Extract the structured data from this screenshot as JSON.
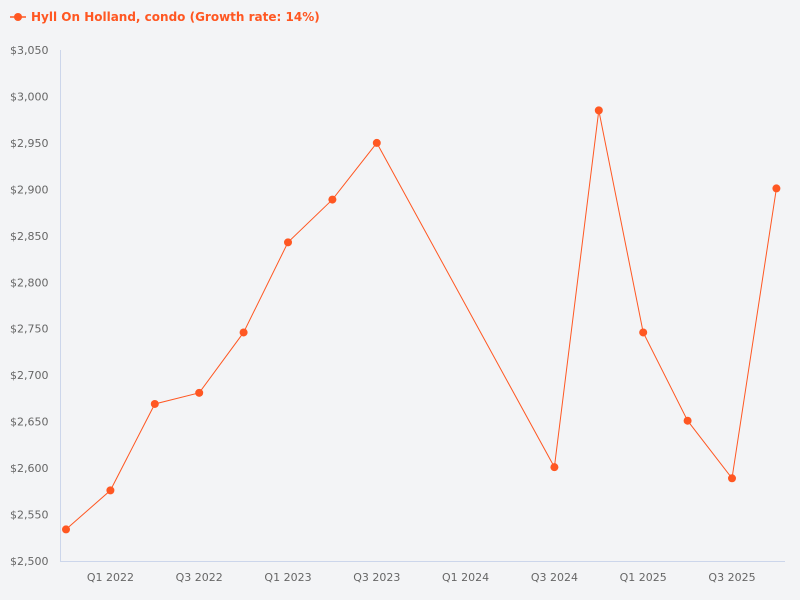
{
  "chart_data": {
    "type": "line",
    "title": "",
    "legend": {
      "label": "Hyll On Holland, condo (Growth rate: 14%)",
      "position": "top-left"
    },
    "color": "#ff5722",
    "x_categories": [
      "Q4 2021",
      "Q1 2022",
      "Q2 2022",
      "Q3 2022",
      "Q4 2022",
      "Q1 2023",
      "Q2 2023",
      "Q3 2023",
      "Q4 2023",
      "Q1 2024",
      "Q2 2024",
      "Q3 2024",
      "Q4 2024",
      "Q1 2025",
      "Q2 2025",
      "Q3 2025",
      "Q4 2025"
    ],
    "x_tick_labels": [
      "Q1 2022",
      "Q3 2022",
      "Q1 2023",
      "Q3 2023",
      "Q1 2024",
      "Q3 2024",
      "Q1 2025",
      "Q3 2025"
    ],
    "series": [
      {
        "name": "Hyll On Holland, condo",
        "points": [
          {
            "x": "Q4 2021",
            "y": 2534
          },
          {
            "x": "Q1 2022",
            "y": 2576
          },
          {
            "x": "Q2 2022",
            "y": 2669
          },
          {
            "x": "Q3 2022",
            "y": 2681
          },
          {
            "x": "Q4 2022",
            "y": 2746
          },
          {
            "x": "Q1 2023",
            "y": 2843
          },
          {
            "x": "Q2 2023",
            "y": 2889
          },
          {
            "x": "Q3 2023",
            "y": 2950
          },
          {
            "x": "Q3 2024",
            "y": 2601
          },
          {
            "x": "Q4 2024",
            "y": 2985
          },
          {
            "x": "Q1 2025",
            "y": 2746
          },
          {
            "x": "Q2 2025",
            "y": 2651
          },
          {
            "x": "Q3 2025",
            "y": 2589
          },
          {
            "x": "Q4 2025",
            "y": 2901
          }
        ]
      }
    ],
    "y_ticks": [
      2500,
      2550,
      2600,
      2650,
      2700,
      2750,
      2800,
      2850,
      2900,
      2950,
      3000,
      3050
    ],
    "y_tick_prefix": "$",
    "ylim": [
      2500,
      3050
    ],
    "xlabel": "",
    "ylabel": "",
    "grid": false
  }
}
